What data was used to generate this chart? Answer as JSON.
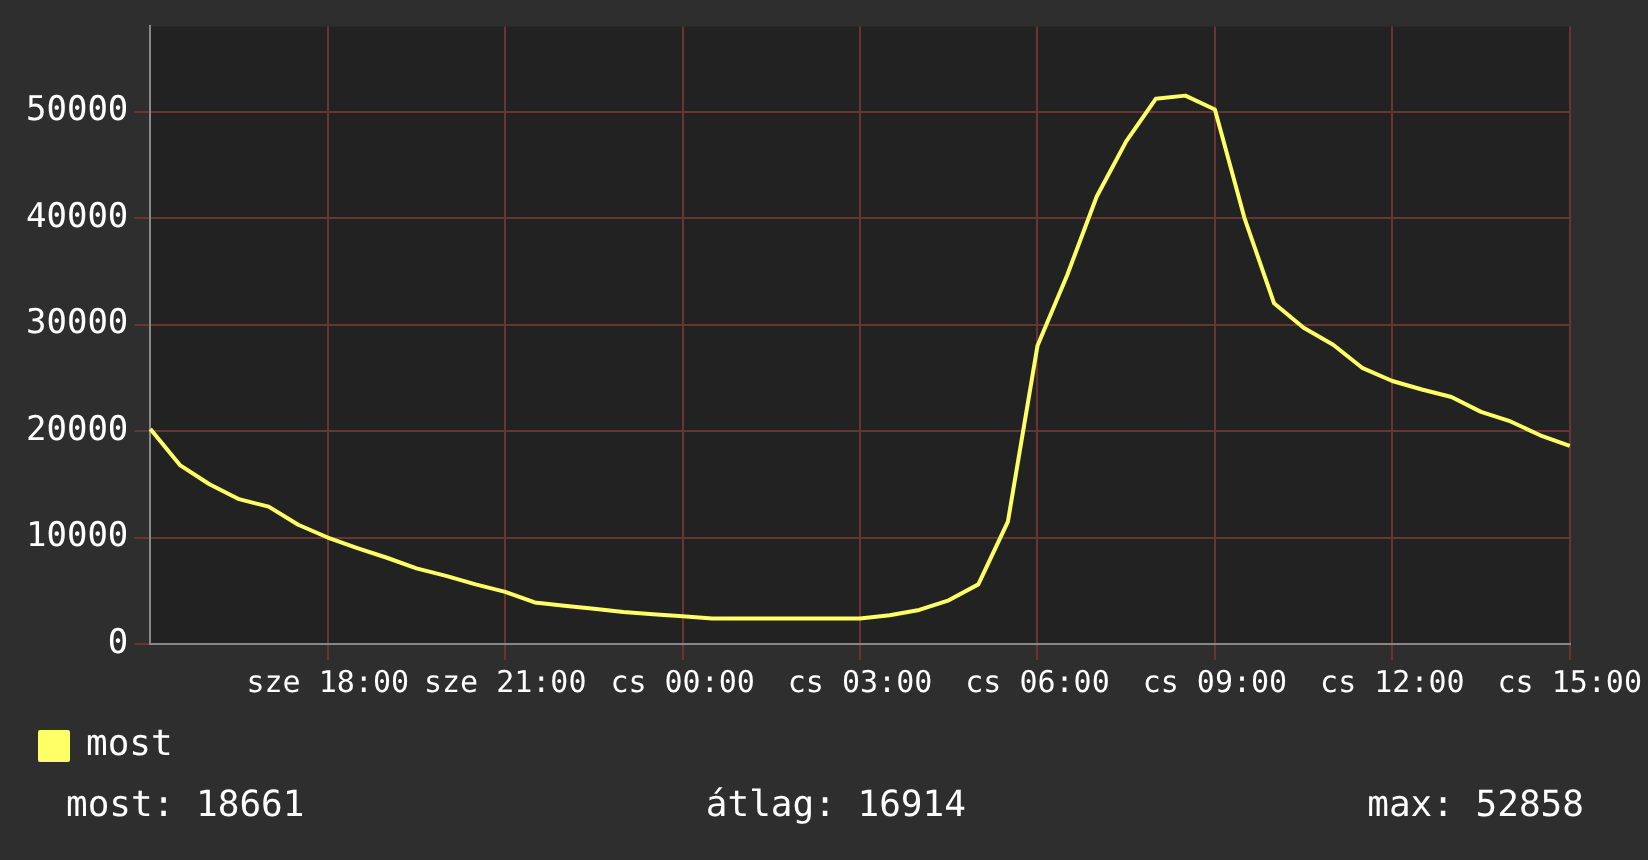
{
  "chart_data": {
    "type": "line",
    "categories": [
      null,
      null,
      null,
      null,
      null,
      null,
      "sze 18:00",
      null,
      null,
      null,
      null,
      null,
      "sze 21:00",
      null,
      null,
      null,
      null,
      null,
      "cs 00:00",
      null,
      null,
      null,
      null,
      null,
      "cs 03:00",
      null,
      null,
      null,
      null,
      null,
      "cs 06:00",
      null,
      null,
      null,
      null,
      null,
      "cs 09:00",
      null,
      null,
      null,
      null,
      null,
      "cs 12:00",
      null,
      null,
      null,
      null,
      null,
      "cs 15:00"
    ],
    "series": [
      {
        "name": "most",
        "color": "#ffff66",
        "values": [
          20200,
          16800,
          15000,
          13600,
          12900,
          11200,
          10000,
          9000,
          8100,
          7100,
          6400,
          5600,
          4900,
          3900,
          3600,
          3300,
          3000,
          2800,
          2600,
          2400,
          2400,
          2400,
          2400,
          2400,
          2400,
          2700,
          3200,
          4100,
          5600,
          11500,
          28000,
          34600,
          42000,
          47200,
          51200,
          51500,
          50200,
          40000,
          32000,
          29700,
          28100,
          25900,
          24700,
          23900,
          23200,
          21800,
          20900,
          19600,
          18600
        ]
      }
    ],
    "ylim": [
      0,
      58000
    ],
    "yticks": [
      0,
      10000,
      20000,
      30000,
      40000,
      50000
    ],
    "grid": true,
    "legend": "bottom left",
    "marker": "none",
    "line_style": "solid",
    "annotations": [
      "most: 18661",
      "átlag: 16914",
      "max: 52858"
    ]
  }
}
